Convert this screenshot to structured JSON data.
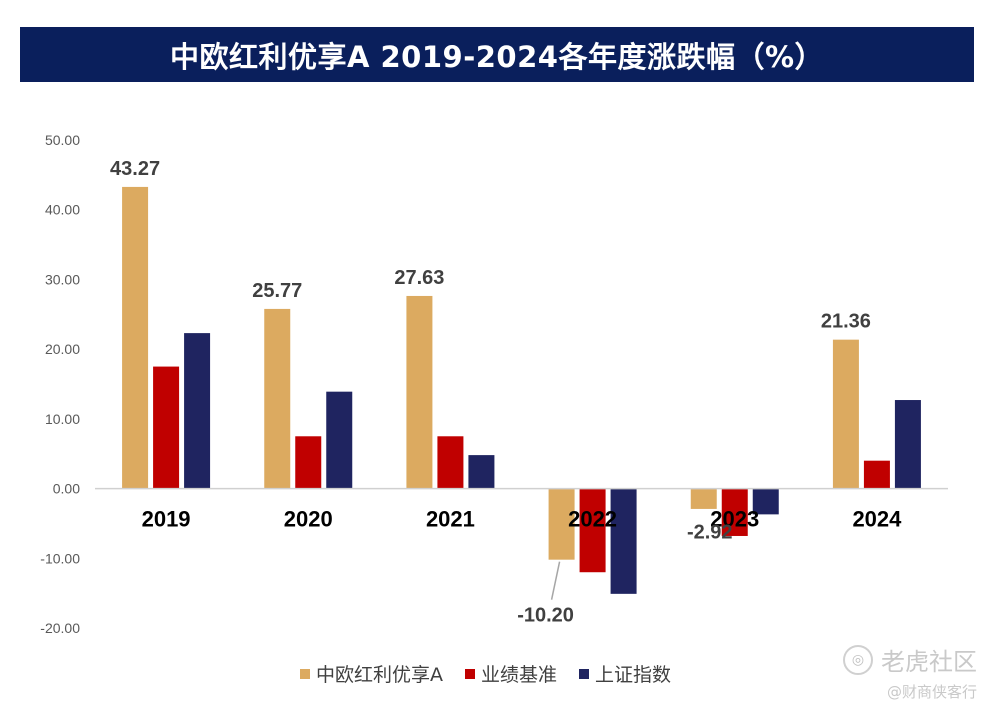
{
  "header": {
    "title": "中欧红利优享A 2019-2024各年度涨跌幅（%）"
  },
  "chart_data": {
    "type": "bar",
    "title": "中欧红利优享A 2019-2024各年度涨跌幅（%）",
    "categories": [
      "2019",
      "2020",
      "2021",
      "2022",
      "2023",
      "2024"
    ],
    "series": [
      {
        "name": "中欧红利优享A",
        "color": "#dcaa60",
        "values": [
          43.27,
          25.77,
          27.63,
          -10.2,
          -2.92,
          21.36
        ]
      },
      {
        "name": "业绩基准",
        "color": "#c00000",
        "values": [
          17.5,
          7.5,
          7.5,
          -12.0,
          -6.8,
          4.0
        ]
      },
      {
        "name": "上证指数",
        "color": "#1f2460",
        "values": [
          22.3,
          13.9,
          4.8,
          -15.1,
          -3.7,
          12.7
        ]
      }
    ],
    "data_labels": [
      "43.27",
      "25.77",
      "27.63",
      "-10.20",
      "-2.92",
      "21.36"
    ],
    "yticks": [
      "50.00",
      "40.00",
      "30.00",
      "20.00",
      "10.00",
      "0.00",
      "-10.00",
      "-20.00"
    ],
    "ylim": [
      -20,
      50
    ],
    "xlabel": "",
    "ylabel": "",
    "legend_position": "bottom"
  },
  "watermark": {
    "brand": "老虎社区",
    "sub": "@财商侠客行"
  }
}
